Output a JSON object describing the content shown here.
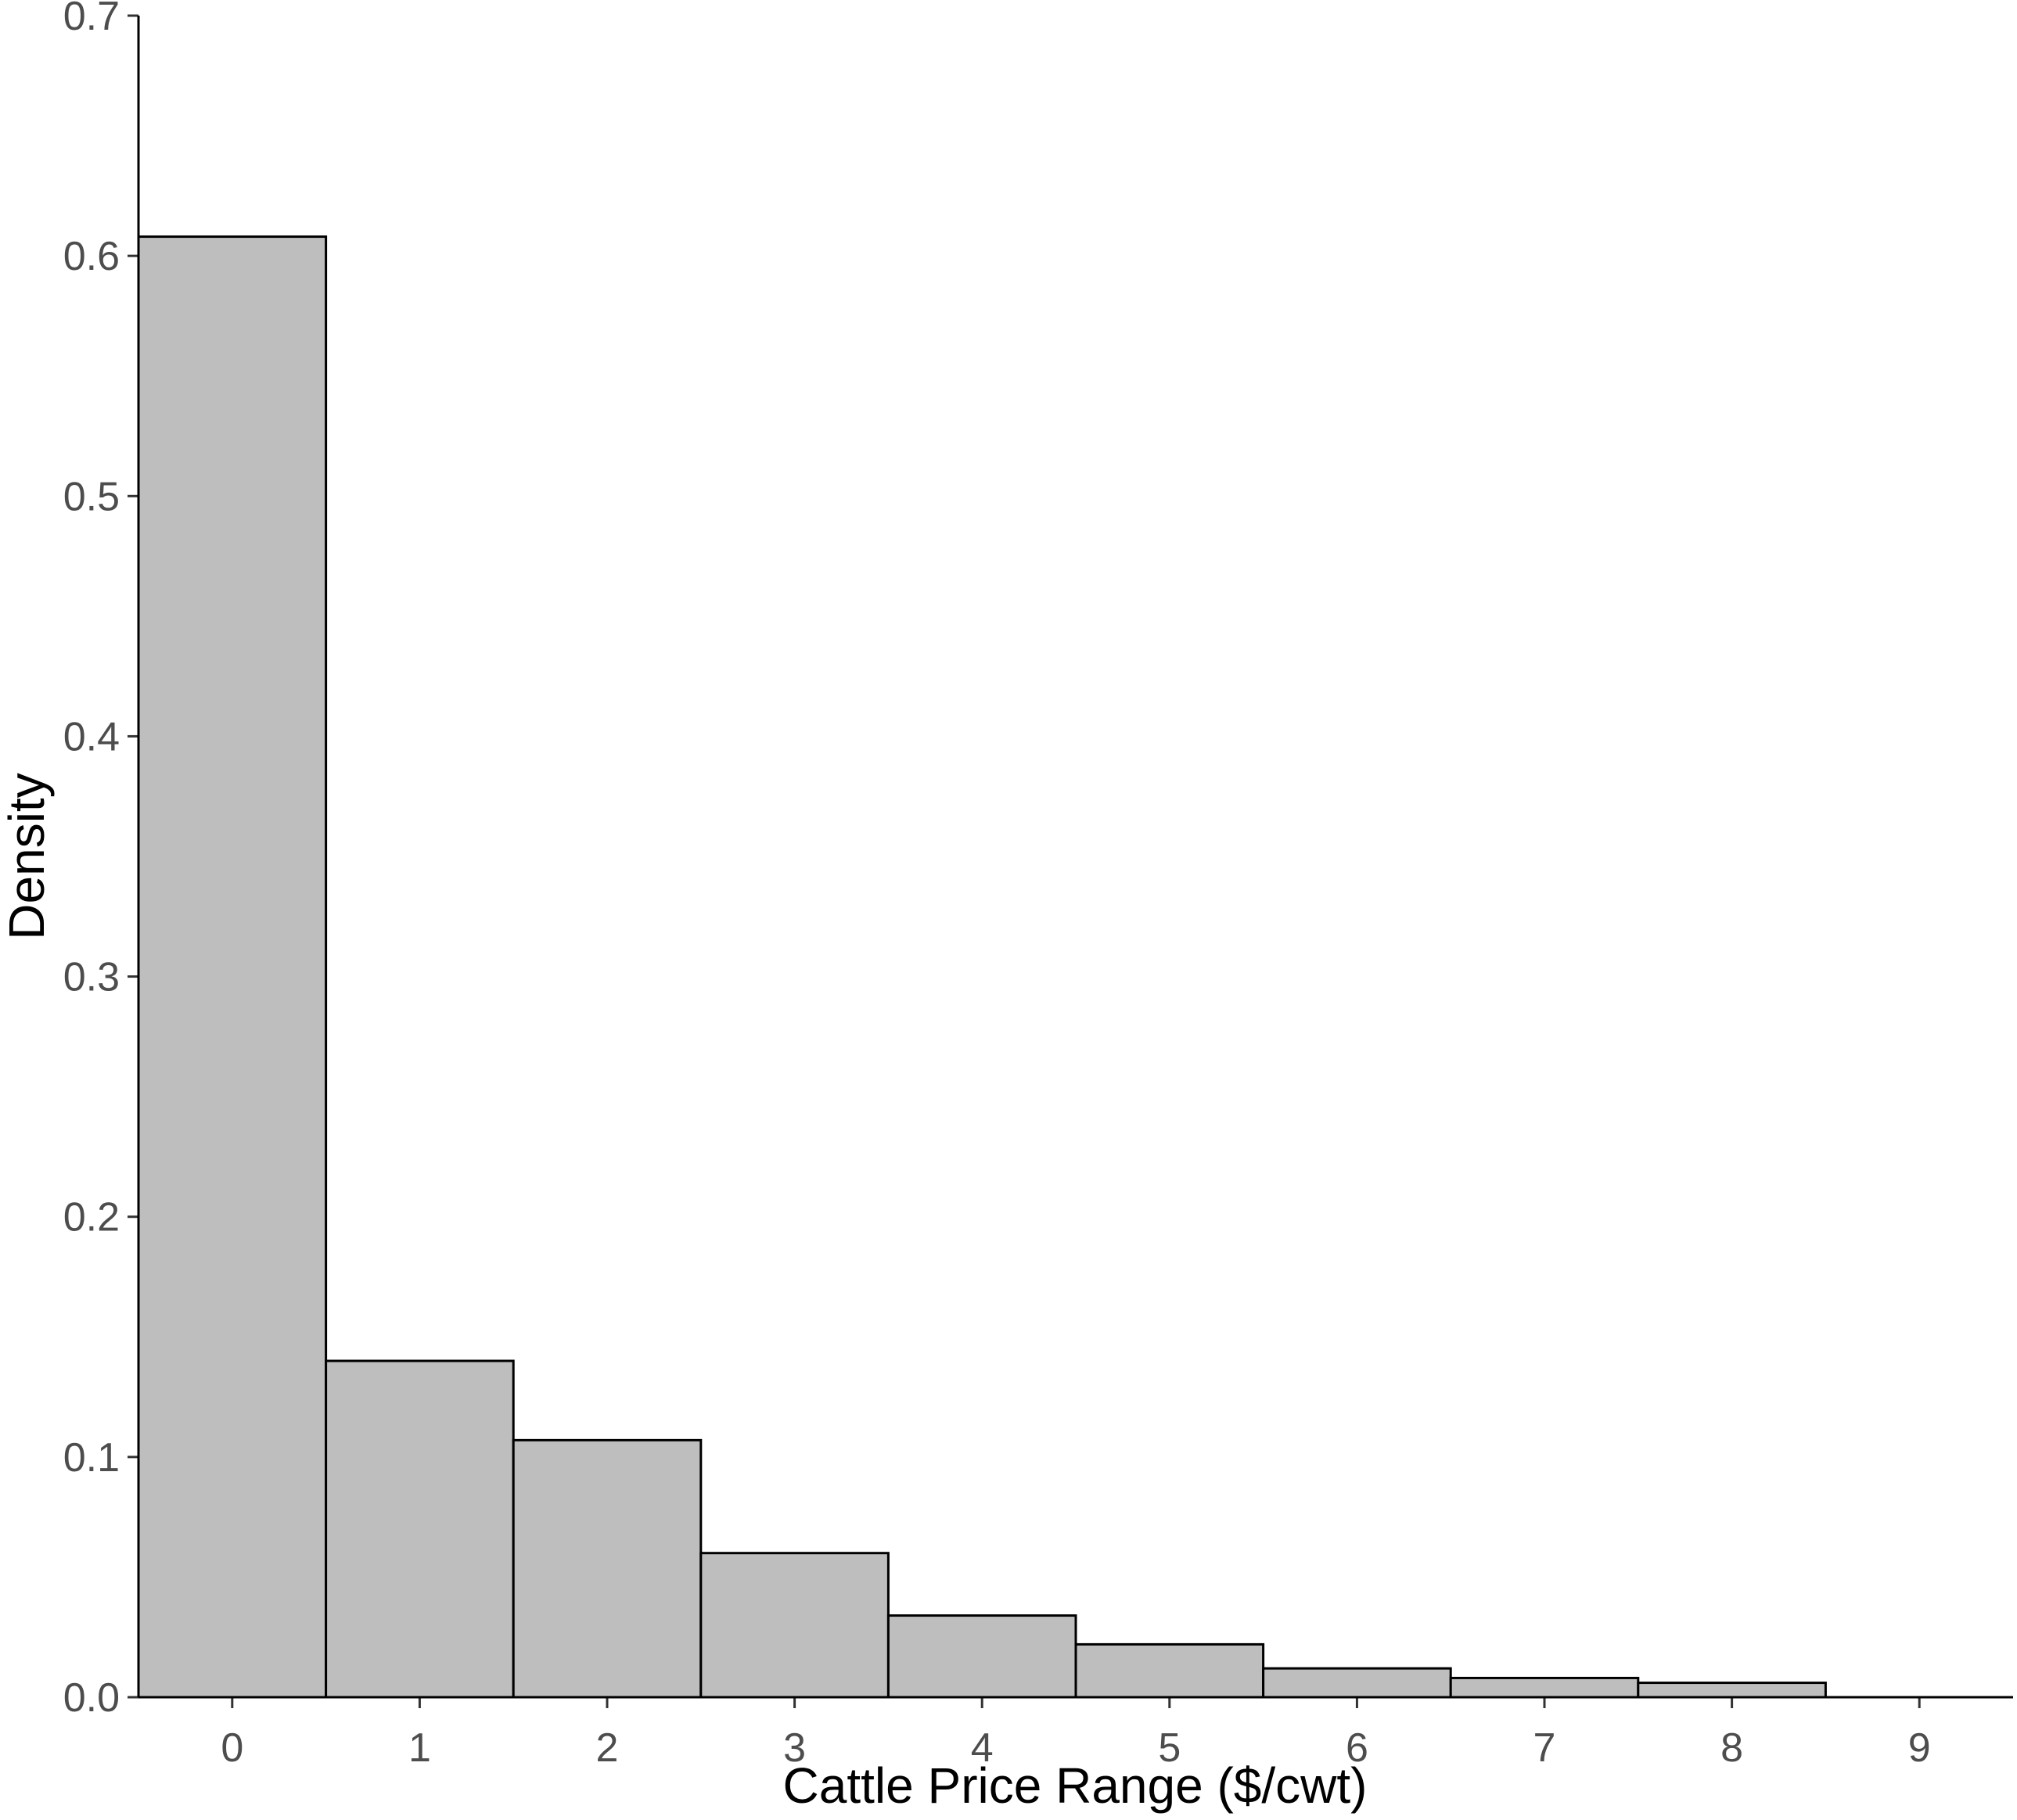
{
  "chart_data": {
    "type": "bar",
    "title": "",
    "xlabel": "Cattle Price Range ($/cwt)",
    "ylabel": "Density",
    "categories": [
      "0",
      "1",
      "2",
      "3",
      "4",
      "5",
      "6",
      "7",
      "8",
      "9"
    ],
    "values": [
      0.608,
      0.14,
      0.107,
      0.06,
      0.034,
      0.022,
      0.012,
      0.008,
      0.006,
      0.0
    ],
    "xlim": [
      -0.5,
      9.5
    ],
    "ylim": [
      0,
      0.7
    ],
    "x_ticks": [
      0,
      1,
      2,
      3,
      4,
      5,
      6,
      7,
      8,
      9
    ],
    "y_ticks": [
      0.0,
      0.1,
      0.2,
      0.3,
      0.4,
      0.5,
      0.6,
      0.7
    ],
    "y_tick_labels": [
      "0.0",
      "0.1",
      "0.2",
      "0.3",
      "0.4",
      "0.5",
      "0.6",
      "0.7"
    ],
    "grid": false,
    "legend": "none",
    "colors": {
      "bar_fill": "#bebebe",
      "bar_stroke": "#000000",
      "tick_text": "#4d4d4d"
    }
  }
}
